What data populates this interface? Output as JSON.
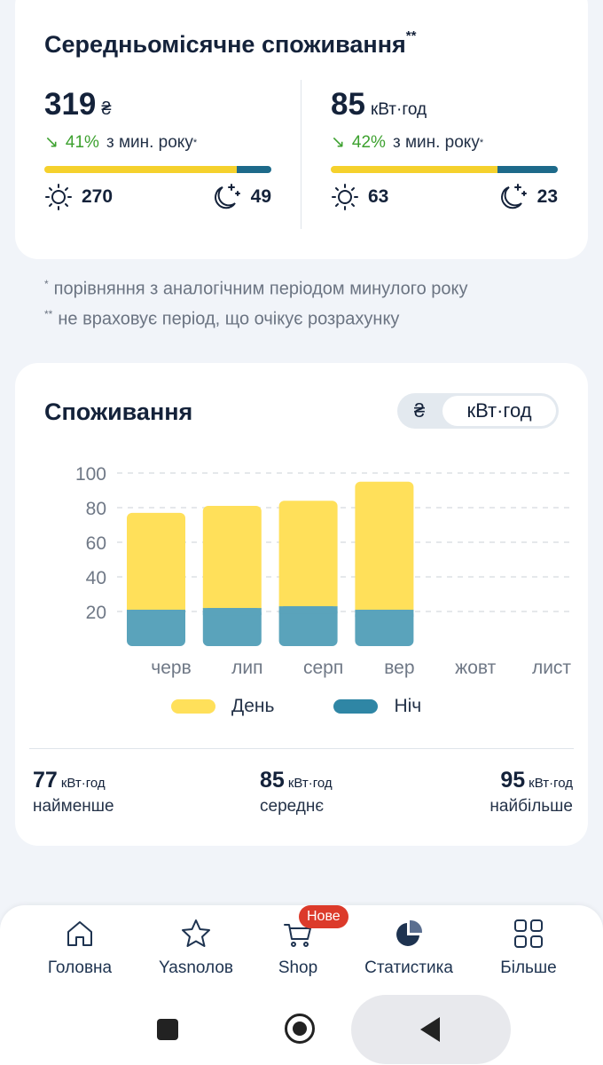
{
  "summary": {
    "title": "Середньомісячне споживання",
    "title_marks": "**",
    "cost": {
      "value": "319",
      "unit": "₴",
      "change_arrow": "↘",
      "change_pct": "41%",
      "change_text": "з мин. року",
      "change_mark": "*",
      "day_value": "270",
      "night_value": "49",
      "day_fraction": 0.846
    },
    "energy": {
      "value": "85",
      "unit": "кВт·год",
      "change_arrow": "↘",
      "change_pct": "42%",
      "change_text": "з мин. року",
      "change_mark": "*",
      "day_value": "63",
      "night_value": "23",
      "day_fraction": 0.733
    }
  },
  "footnotes": {
    "note1_mark": "*",
    "note1": "порівняння з аналогічним періодом минулого року",
    "note2_mark": "**",
    "note2": "не враховує період, що очікує розрахунку"
  },
  "consumption": {
    "title": "Споживання",
    "toggle": {
      "uah": "₴",
      "kwh": "кВт·год",
      "selected": "kwh"
    }
  },
  "chart_data": {
    "type": "bar",
    "stacked": true,
    "categories": [
      "черв",
      "лип",
      "серп",
      "вер",
      "жовт",
      "лист"
    ],
    "series": [
      {
        "name": "День",
        "values": [
          56,
          59,
          61,
          74,
          null,
          null
        ],
        "color": "#ffe05a"
      },
      {
        "name": "Ніч",
        "values": [
          21,
          22,
          23,
          21,
          null,
          null
        ],
        "color": "#5aa3bb"
      }
    ],
    "yticks": [
      20,
      40,
      60,
      80,
      100
    ],
    "ylim": [
      0,
      100
    ],
    "grid": true,
    "legend_position": "bottom"
  },
  "stats": {
    "min": {
      "value": "77",
      "unit": "кВт·год",
      "label": "найменше"
    },
    "avg": {
      "value": "85",
      "unit": "кВт·год",
      "label": "середнє"
    },
    "max": {
      "value": "95",
      "unit": "кВт·год",
      "label": "найбільше"
    }
  },
  "nav": {
    "items": [
      {
        "label": "Головна",
        "icon": "home-icon"
      },
      {
        "label": "Yasnолов",
        "icon": "star-icon"
      },
      {
        "label": "Shop",
        "icon": "cart-icon"
      },
      {
        "label": "Статистика",
        "icon": "pie-chart-icon"
      },
      {
        "label": "Більше",
        "icon": "grid-icon"
      }
    ],
    "shop_badge": "Нове"
  },
  "colors": {
    "accent_yellow": "#f5d12d",
    "accent_teal": "#1d6a8a",
    "positive_green": "#3da12f",
    "badge_red": "#dc3a2a"
  }
}
